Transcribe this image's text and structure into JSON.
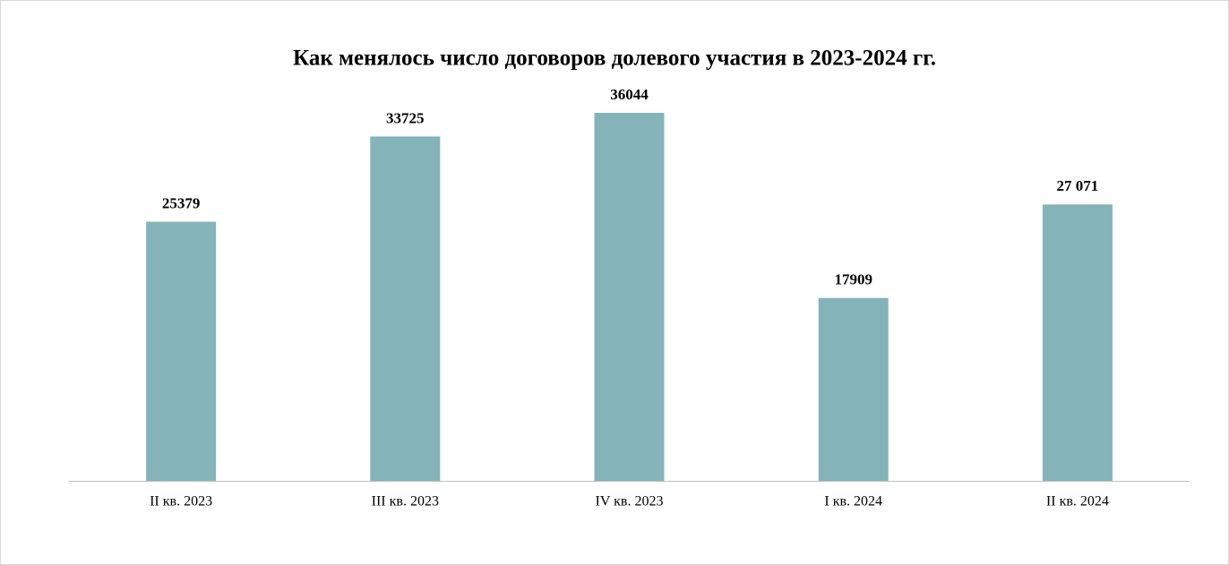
{
  "chart_data": {
    "type": "bar",
    "title": "Как менялось число договоров долевого участия в 2023-2024 гг.",
    "categories": [
      "II кв. 2023",
      "III кв. 2023",
      "IV кв. 2023",
      "I кв. 2024",
      "II кв. 2024"
    ],
    "values": [
      25379,
      33725,
      36044,
      17909,
      27071
    ],
    "value_labels": [
      "25379",
      "33725",
      "36044",
      "17909",
      "27 071"
    ],
    "color": "#84b4b9"
  }
}
